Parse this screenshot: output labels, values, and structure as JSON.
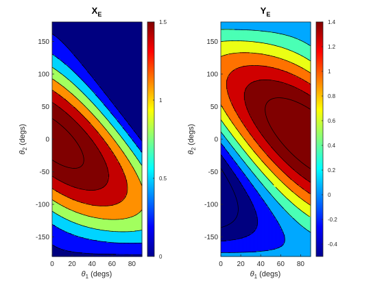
{
  "chart_data": [
    {
      "type": "contour",
      "title": "X",
      "title_subscript": "E",
      "xlabel_symbol": "θ",
      "xlabel_sub": "1",
      "xlabel_rest": " (degs)",
      "ylabel_symbol": "θ",
      "ylabel_sub": "2",
      "ylabel_rest": " (degs)",
      "xlim": [
        0,
        90
      ],
      "ylim": [
        -180,
        180
      ],
      "x_ticks": [
        0,
        20,
        40,
        60,
        80
      ],
      "y_ticks": [
        -150,
        -100,
        -50,
        0,
        50,
        100,
        150
      ],
      "model": "x = cos(theta1) + cos(theta1 + theta2)",
      "colorbar": {
        "range": [
          0,
          1.5
        ],
        "ticks": [
          0,
          0.5,
          1,
          1.5
        ],
        "tick_labels": [
          "0",
          "0.5",
          "1",
          "1.5"
        ]
      },
      "contour_levels": [
        0.05,
        0.35,
        0.65,
        0.95,
        1.25,
        1.55,
        1.85
      ],
      "colormap": "jet",
      "grid": false
    },
    {
      "type": "contour",
      "title": "Y",
      "title_subscript": "E",
      "xlabel_symbol": "θ",
      "xlabel_sub": "1",
      "xlabel_rest": " (degs)",
      "ylabel_symbol": "θ",
      "ylabel_sub": "2",
      "ylabel_rest": " (degs)",
      "xlim": [
        0,
        90
      ],
      "ylim": [
        -180,
        180
      ],
      "x_ticks": [
        0,
        20,
        40,
        60,
        80
      ],
      "y_ticks": [
        -150,
        -100,
        -50,
        0,
        50,
        100,
        150
      ],
      "model": "y = sin(theta1) + sin(theta1 + theta2)",
      "colorbar": {
        "range": [
          -0.5,
          1.4
        ],
        "ticks": [
          -0.4,
          -0.2,
          0,
          0.2,
          0.4,
          0.6,
          0.8,
          1,
          1.2,
          1.4
        ],
        "tick_labels": [
          "-0.4",
          "-0.2",
          "0",
          "0.2",
          "0.4",
          "0.6",
          "0.8",
          "1",
          "1.2",
          "1.4"
        ]
      },
      "contour_levels": [
        -0.7,
        -0.4,
        -0.1,
        0.2,
        0.5,
        0.8,
        1.1,
        1.4,
        1.7
      ],
      "colormap": "jet",
      "grid": false
    }
  ]
}
